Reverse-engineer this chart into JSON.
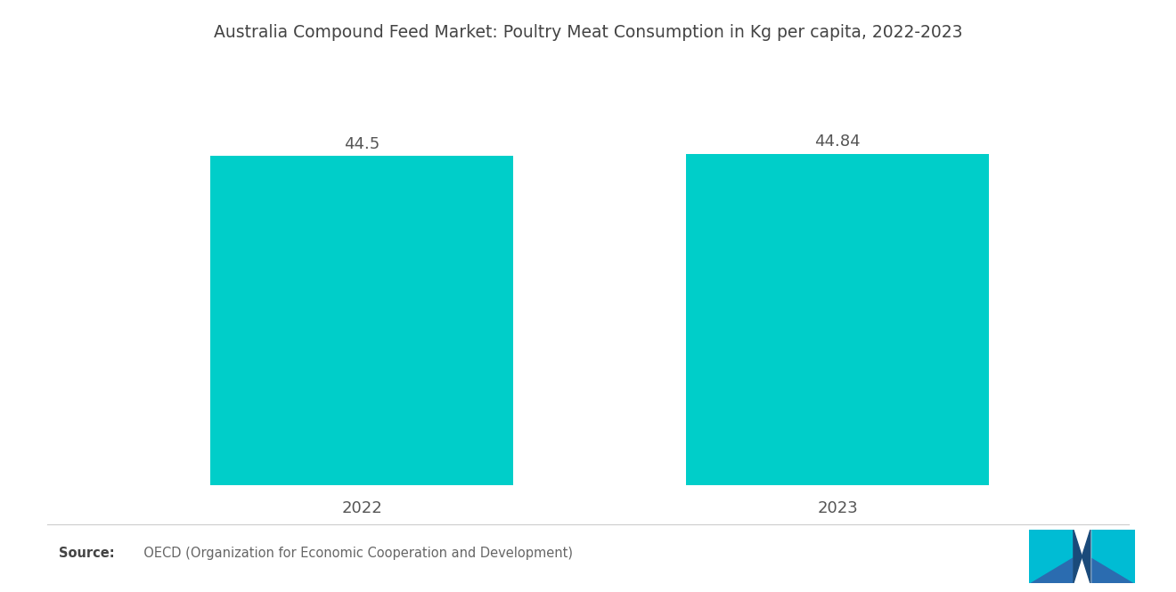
{
  "title": "Australia Compound Feed Market: Poultry Meat Consumption in Kg per capita, 2022-2023",
  "categories": [
    "2022",
    "2023"
  ],
  "values": [
    44.5,
    44.84
  ],
  "bar_color": "#00CEC9",
  "background_color": "#ffffff",
  "title_fontsize": 13.5,
  "label_fontsize": 13,
  "value_fontsize": 13,
  "source_bold": "Source:",
  "source_text": "  OECD (Organization for Economic Cooperation and Development)",
  "ylim": [
    0,
    56
  ],
  "bar_width": 0.28,
  "x_positions": [
    0.28,
    0.72
  ]
}
